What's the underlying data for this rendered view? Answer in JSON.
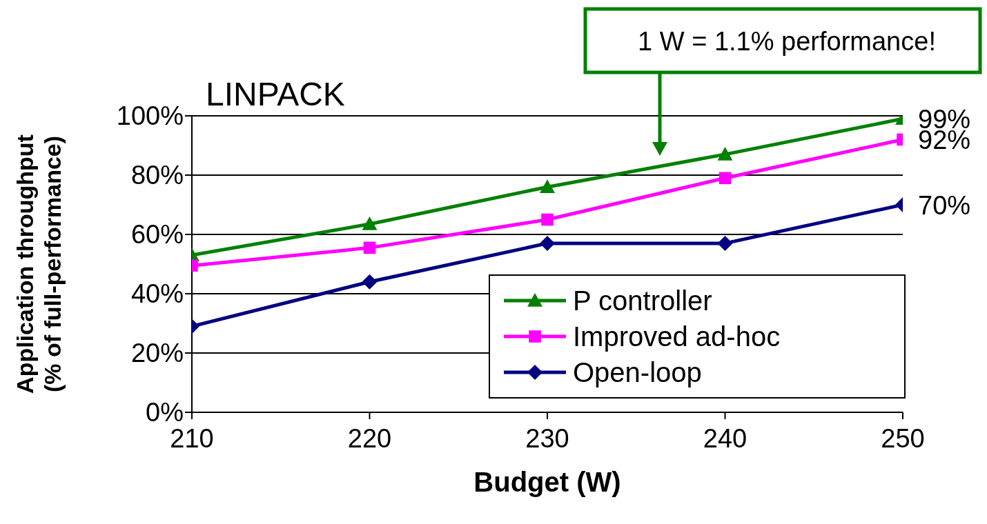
{
  "chart_data": {
    "type": "line",
    "title": "LINPACK",
    "xlabel": "Budget (W)",
    "ylabel": "Application throughput (% of full-performance)",
    "x": [
      210,
      220,
      230,
      240,
      250
    ],
    "series": [
      {
        "name": "P controller",
        "color": "#008000",
        "marker": "triangle",
        "values": [
          53,
          63.5,
          76,
          87,
          99
        ],
        "value_labels": [
          null,
          null,
          null,
          null,
          "99%"
        ]
      },
      {
        "name": "Improved ad-hoc",
        "color": "#ff00ff",
        "marker": "square",
        "values": [
          49.5,
          55.5,
          65,
          79,
          92
        ],
        "value_labels": [
          null,
          null,
          null,
          null,
          "92%"
        ]
      },
      {
        "name": "Open-loop",
        "color": "#000080",
        "marker": "diamond",
        "values": [
          29,
          44,
          57,
          57,
          70
        ],
        "value_labels": [
          null,
          null,
          null,
          null,
          "70%"
        ]
      }
    ],
    "xlim": [
      210,
      250
    ],
    "xticks": [
      210,
      220,
      230,
      240,
      250
    ],
    "ylim": [
      0,
      100
    ],
    "yticks": [
      {
        "value": 0,
        "label": "0%"
      },
      {
        "value": 20,
        "label": "20%"
      },
      {
        "value": 40,
        "label": "40%"
      },
      {
        "value": 60,
        "label": "60%"
      },
      {
        "value": 80,
        "label": "80%"
      },
      {
        "value": 100,
        "label": "100%"
      }
    ],
    "grid": "y",
    "legend": "bottom right",
    "line_style": "solid",
    "annotations": [
      "1 W = 1.1% performance!"
    ]
  }
}
